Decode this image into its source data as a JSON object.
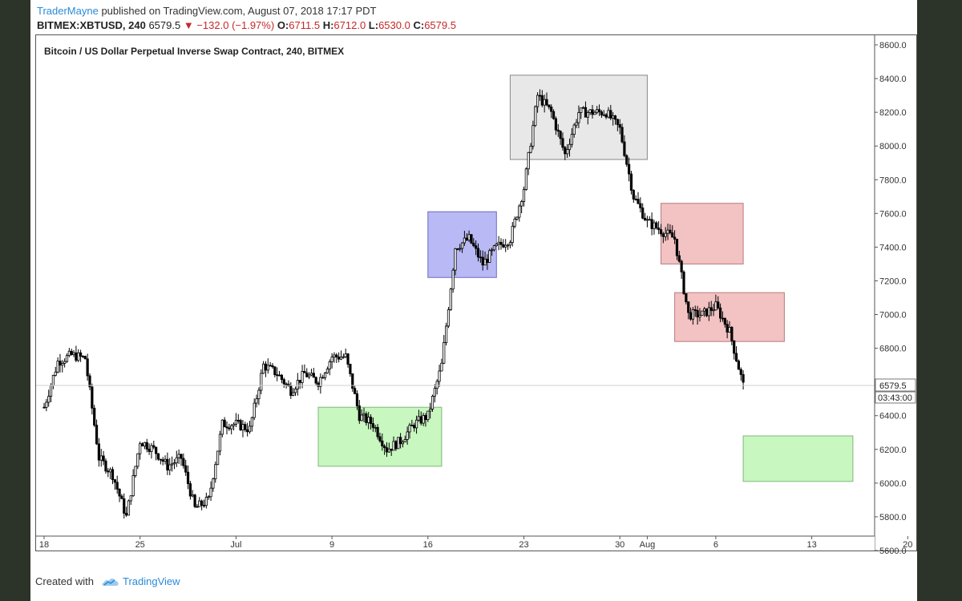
{
  "header": {
    "user": "TraderMayne",
    "published": "published on TradingView.com, August 07, 2018 17:17 PDT",
    "symbol": "BITMEX:XBTUSD, 240",
    "last": "6579.5",
    "change": "−132.0 (−1.97%)",
    "o_label": "O:",
    "o_value": "6711.5",
    "h_label": "H:",
    "h_value": "6712.0",
    "l_label": "L:",
    "l_value": "6530.0",
    "c_label": "C:",
    "c_value": "6579.5"
  },
  "footer": {
    "created_with": "Created with",
    "brand": "TradingView"
  },
  "colors": {
    "up": "#ffffff",
    "down": "#000000",
    "blue_zone": "#b9b9f5",
    "grey_zone": "#e6e6e6",
    "red_zone": "#f3c2c2",
    "green_zone": "#c8f7c0"
  },
  "chart_data": {
    "type": "candlestick",
    "title": "Bitcoin / US Dollar Perpetual Inverse Swap Contract, 240, BITMEX",
    "ylim": [
      5600,
      8600
    ],
    "y_ticks": [
      "8600.0",
      "8400.0",
      "8200.0",
      "8000.0",
      "7800.0",
      "7600.0",
      "7400.0",
      "7200.0",
      "7000.0",
      "6800.0",
      "6600.0",
      "6400.0",
      "6200.0",
      "6000.0",
      "5800.0",
      "5600.0"
    ],
    "x_ticks": [
      "18",
      "25",
      "Jul",
      "9",
      "16",
      "23",
      "30",
      "Aug",
      "6",
      "13",
      "20"
    ],
    "last_price_label": "6579.5",
    "countdown_label": "03:43:00",
    "last_price": 6579.5,
    "price_path": [
      [
        "2018-06-18",
        6450
      ],
      [
        "2018-06-19",
        6720
      ],
      [
        "2018-06-20",
        6760
      ],
      [
        "2018-06-21",
        6740
      ],
      [
        "2018-06-22",
        6150
      ],
      [
        "2018-06-23",
        6050
      ],
      [
        "2018-06-24",
        5800
      ],
      [
        "2018-06-25",
        6250
      ],
      [
        "2018-06-26",
        6200
      ],
      [
        "2018-06-27",
        6100
      ],
      [
        "2018-06-28",
        6150
      ],
      [
        "2018-06-29",
        5850
      ],
      [
        "2018-06-30",
        5900
      ],
      [
        "2018-07-01",
        6350
      ],
      [
        "2018-07-02",
        6350
      ],
      [
        "2018-07-03",
        6320
      ],
      [
        "2018-07-04",
        6700
      ],
      [
        "2018-07-05",
        6650
      ],
      [
        "2018-07-06",
        6550
      ],
      [
        "2018-07-07",
        6650
      ],
      [
        "2018-07-08",
        6600
      ],
      [
        "2018-07-09",
        6750
      ],
      [
        "2018-07-10",
        6750
      ],
      [
        "2018-07-11",
        6400
      ],
      [
        "2018-07-12",
        6350
      ],
      [
        "2018-07-13",
        6200
      ],
      [
        "2018-07-14",
        6250
      ],
      [
        "2018-07-15",
        6350
      ],
      [
        "2018-07-16",
        6400
      ],
      [
        "2018-07-17",
        6700
      ],
      [
        "2018-07-18",
        7400
      ],
      [
        "2018-07-19",
        7450
      ],
      [
        "2018-07-20",
        7300
      ],
      [
        "2018-07-21",
        7400
      ],
      [
        "2018-07-22",
        7450
      ],
      [
        "2018-07-23",
        7750
      ],
      [
        "2018-07-24",
        8300
      ],
      [
        "2018-07-25",
        8200
      ],
      [
        "2018-07-26",
        7950
      ],
      [
        "2018-07-27",
        8200
      ],
      [
        "2018-07-28",
        8200
      ],
      [
        "2018-07-29",
        8200
      ],
      [
        "2018-07-30",
        8100
      ],
      [
        "2018-07-31",
        7700
      ],
      [
        "2018-08-01",
        7550
      ],
      [
        "2018-08-02",
        7500
      ],
      [
        "2018-08-03",
        7450
      ],
      [
        "2018-08-04",
        7000
      ],
      [
        "2018-08-05",
        7000
      ],
      [
        "2018-08-06",
        7050
      ],
      [
        "2018-08-07",
        6900
      ],
      [
        "2018-08-08",
        6580
      ]
    ],
    "zones": [
      {
        "name": "blue-zone",
        "color": "blue",
        "x0": "2018-07-16",
        "x1": "2018-07-21",
        "y0": 7220,
        "y1": 7610
      },
      {
        "name": "grey-zone",
        "color": "grey",
        "x0": "2018-07-22",
        "x1": "2018-08-01",
        "y0": 7920,
        "y1": 8420
      },
      {
        "name": "red-zone-upper",
        "color": "red",
        "x0": "2018-08-02",
        "x1": "2018-08-08",
        "y0": 7300,
        "y1": 7660
      },
      {
        "name": "red-zone-lower",
        "color": "red",
        "x0": "2018-08-03",
        "x1": "2018-08-11",
        "y0": 6840,
        "y1": 7130
      },
      {
        "name": "green-zone-left",
        "color": "green",
        "x0": "2018-07-08",
        "x1": "2018-07-17",
        "y0": 6100,
        "y1": 6450
      },
      {
        "name": "green-zone-right",
        "color": "green",
        "x0": "2018-08-08",
        "x1": "2018-08-16",
        "y0": 6010,
        "y1": 6280
      }
    ],
    "grid": false,
    "legend": "none"
  }
}
